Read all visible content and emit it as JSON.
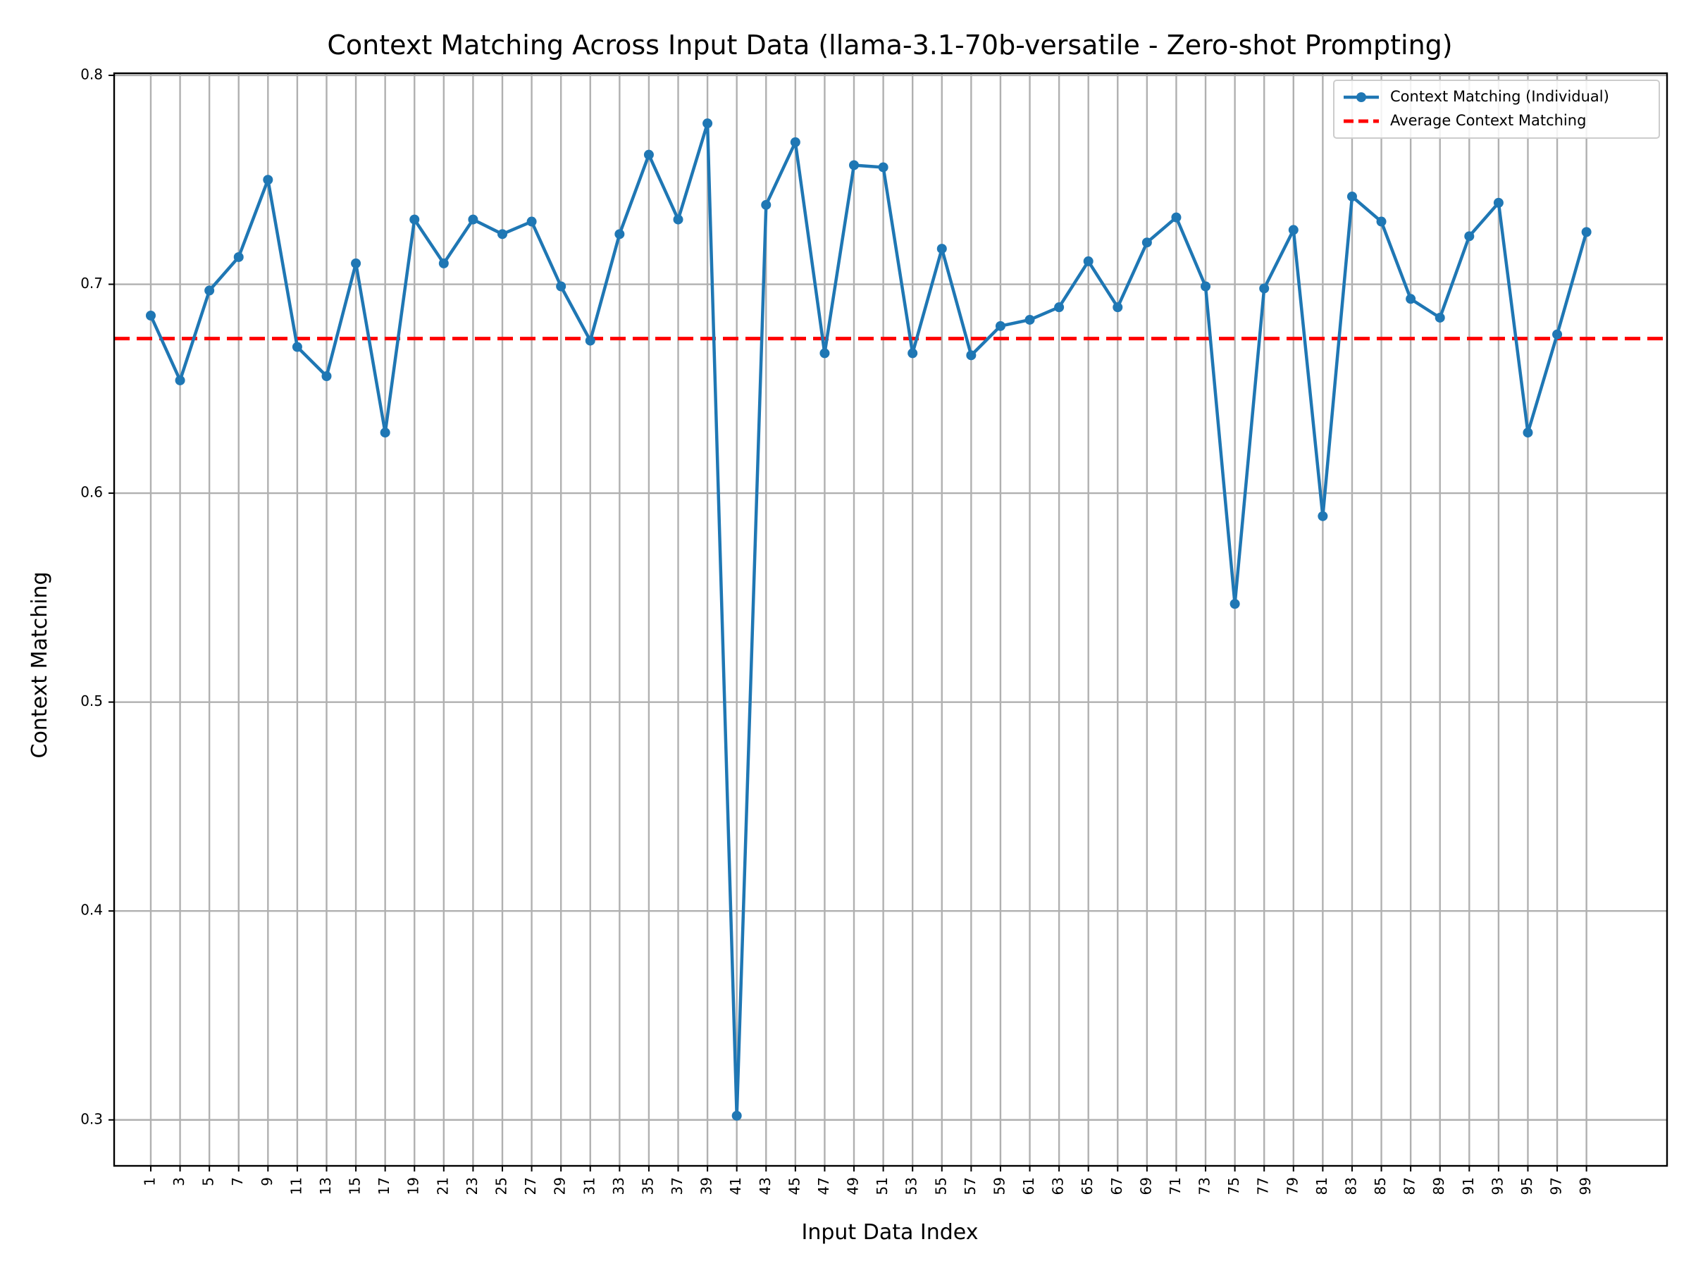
{
  "chart_data": {
    "type": "line",
    "title": "Context Matching Across Input Data (llama-3.1-70b-versatile - Zero-shot Prompting)",
    "xlabel": "Input Data Index",
    "ylabel": "Context Matching",
    "xlim": [
      -1.5,
      104.5
    ],
    "ylim": [
      0.278,
      0.801
    ],
    "x_ticks": [
      1,
      3,
      5,
      7,
      9,
      11,
      13,
      15,
      17,
      19,
      21,
      23,
      25,
      27,
      29,
      31,
      33,
      35,
      37,
      39,
      41,
      43,
      45,
      47,
      49,
      51,
      53,
      55,
      57,
      59,
      61,
      63,
      65,
      67,
      69,
      71,
      73,
      75,
      77,
      79,
      81,
      83,
      85,
      87,
      89,
      91,
      93,
      95,
      97,
      99
    ],
    "y_ticks": [
      0.3,
      0.4,
      0.5,
      0.6,
      0.7,
      0.8
    ],
    "grid": true,
    "legend_position": "top-right",
    "series": [
      {
        "name": "Context Matching (Individual)",
        "color": "#1f77b4",
        "style": "solid-with-markers",
        "x": [
          1,
          3,
          5,
          7,
          9,
          11,
          13,
          15,
          17,
          19,
          21,
          23,
          25,
          27,
          29,
          31,
          33,
          35,
          37,
          39,
          41,
          43,
          45,
          47,
          49,
          51,
          53,
          55,
          57,
          59,
          61,
          63,
          65,
          67,
          69,
          71,
          73,
          75,
          77,
          79,
          81,
          83,
          85,
          87,
          89,
          91,
          93,
          95,
          97,
          99
        ],
        "values": [
          0.685,
          0.654,
          0.697,
          0.713,
          0.75,
          0.67,
          0.656,
          0.71,
          0.629,
          0.731,
          0.71,
          0.731,
          0.724,
          0.73,
          0.699,
          0.673,
          0.724,
          0.762,
          0.731,
          0.777,
          0.302,
          0.738,
          0.768,
          0.667,
          0.757,
          0.756,
          0.667,
          0.717,
          0.666,
          0.68,
          0.683,
          0.689,
          0.711,
          0.689,
          0.72,
          0.732,
          0.699,
          0.547,
          0.698,
          0.726,
          0.589,
          0.742,
          0.73,
          0.693,
          0.684,
          0.723,
          0.739,
          0.629,
          0.676,
          0.725
        ]
      },
      {
        "name": "Average Context Matching",
        "color": "#ff0000",
        "style": "dashed",
        "value": 0.674
      }
    ]
  }
}
